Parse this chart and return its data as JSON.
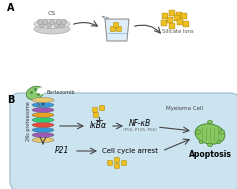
{
  "title_A": "A",
  "title_B": "B",
  "label_CS": "CS",
  "label_silicate": "Silicate Ions",
  "label_bortezomib": "Bortezomib",
  "label_myeloma": "Myeloma Cell",
  "label_proteasome": "26s proteasome",
  "label_IkBa": "IκBα",
  "label_NFkB": "NF-κB",
  "label_NFkB_sub": "(P50, P105, P65)",
  "label_P21": "P21",
  "label_cca": "Cell cycle arrest",
  "label_apoptosis": "Apoptosis",
  "cell_color": "#cce4f0",
  "cell_edge": "#99bbd0",
  "arrow_color": "#444444",
  "dot_color": "#f0c020",
  "dot_edge": "#b08800"
}
